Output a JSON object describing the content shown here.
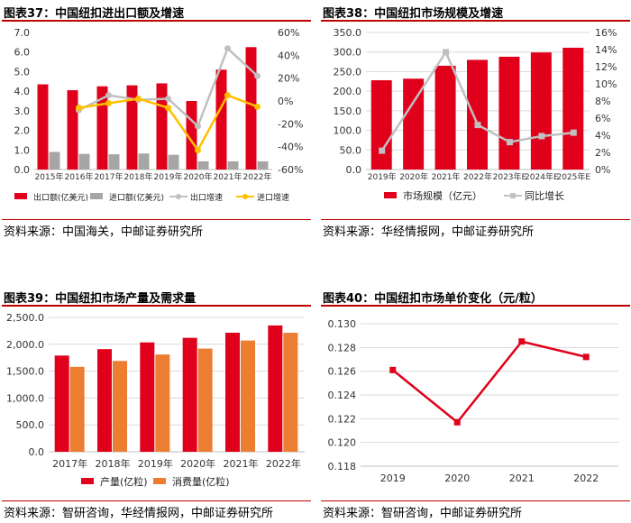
{
  "charts": [
    {
      "id": "c37",
      "title": "图表37：中国纽扣进出口额及增速",
      "source": "资料来源：中国海关，中邮证券研究所"
    },
    {
      "id": "c38",
      "title": "图表38：中国纽扣市场规模及增速",
      "source": "资料来源：华经情报网，中邮证券研究所"
    },
    {
      "id": "c39",
      "title": "图表39：中国纽扣市场产量及需求量",
      "source": "资料来源：智研咨询，华经情报网，中邮证券研究所"
    },
    {
      "id": "c40",
      "title": "图表40：中国纽扣市场单价变化（元/粒）",
      "source": "资料来源：智研咨询，中邮证券研究所"
    }
  ],
  "chart_data": [
    {
      "type": "bar",
      "title": "图表37：中国纽扣进出口额及增速",
      "categories": [
        "2015年",
        "2016年",
        "2017年",
        "2018年",
        "2019年",
        "2020年",
        "2021年",
        "2022年"
      ],
      "y_left": {
        "lim": [
          0,
          7.0
        ],
        "ticks": [
          "0.0",
          "1.0",
          "2.0",
          "3.0",
          "4.0",
          "5.0",
          "6.0",
          "7.0"
        ]
      },
      "y_right": {
        "lim": [
          -60,
          60
        ],
        "ticks": [
          "-60%",
          "-40%",
          "-20%",
          "0%",
          "20%",
          "40%",
          "60%"
        ]
      },
      "series": [
        {
          "name": "出口额(亿美元)",
          "kind": "bar",
          "axis": "left",
          "color": "#e0001b",
          "values": [
            4.35,
            4.05,
            4.25,
            4.3,
            4.4,
            3.5,
            5.1,
            6.25
          ]
        },
        {
          "name": "进口额(亿美元)",
          "kind": "bar",
          "axis": "left",
          "color": "#a6a6a6",
          "values": [
            0.9,
            0.8,
            0.78,
            0.82,
            0.75,
            0.42,
            0.42,
            0.42
          ]
        },
        {
          "name": "出口增速",
          "kind": "line",
          "axis": "right",
          "color": "#c0c0c0",
          "marker": "circle",
          "values": [
            null,
            -8,
            5,
            1,
            2,
            -22,
            46,
            22
          ]
        },
        {
          "name": "进口增速",
          "kind": "line",
          "axis": "right",
          "color": "#ffc000",
          "marker": "circle",
          "values": [
            null,
            -6,
            -2,
            2,
            -6,
            -43,
            5,
            -5
          ]
        }
      ],
      "legend": "bottom"
    },
    {
      "type": "bar",
      "title": "图表38：中国纽扣市场规模及增速",
      "categories": [
        "2019年",
        "2020年",
        "2021年",
        "2022年",
        "2023年E",
        "2024年E",
        "2025年E"
      ],
      "y_left": {
        "lim": [
          0,
          350
        ],
        "ticks": [
          "0.0",
          "50.0",
          "100.0",
          "150.0",
          "200.0",
          "250.0",
          "300.0",
          "350.0"
        ]
      },
      "y_right": {
        "lim": [
          0,
          16
        ],
        "ticks": [
          "0%",
          "2%",
          "4%",
          "6%",
          "8%",
          "10%",
          "12%",
          "14%",
          "16%"
        ]
      },
      "series": [
        {
          "name": "市场规模（亿元）",
          "kind": "bar",
          "axis": "left",
          "color": "#e0001b",
          "values": [
            228,
            232,
            265,
            280,
            288,
            299,
            311
          ]
        },
        {
          "name": "同比增长",
          "kind": "line",
          "axis": "right",
          "color": "#c0c0c0",
          "marker": "square",
          "values": [
            2.2,
            null,
            13.7,
            5.2,
            3.2,
            3.9,
            4.3
          ]
        }
      ],
      "legend": "bottom"
    },
    {
      "type": "bar",
      "title": "图表39：中国纽扣市场产量及需求量",
      "categories": [
        "2017年",
        "2018年",
        "2019年",
        "2020年",
        "2021年",
        "2022年"
      ],
      "y_left": {
        "lim": [
          0,
          2500
        ],
        "ticks": [
          "0.0",
          "500.0",
          "1,000.0",
          "1,500.0",
          "2,000.0",
          "2,500.0"
        ]
      },
      "series": [
        {
          "name": "产量(亿粒)",
          "kind": "bar",
          "axis": "left",
          "color": "#e0001b",
          "values": [
            1790,
            1910,
            2035,
            2120,
            2215,
            2350
          ]
        },
        {
          "name": "消费量(亿粒)",
          "kind": "bar",
          "axis": "left",
          "color": "#ed7d31",
          "values": [
            1580,
            1690,
            1810,
            1920,
            2070,
            2215
          ]
        }
      ],
      "legend": "bottom"
    },
    {
      "type": "line",
      "title": "图表40：中国纽扣市场单价变化（元/粒）",
      "categories": [
        "2019",
        "2020",
        "2021",
        "2022"
      ],
      "y_left": {
        "lim": [
          0.118,
          0.13
        ],
        "ticks": [
          "0.118",
          "0.120",
          "0.122",
          "0.124",
          "0.126",
          "0.128",
          "0.130"
        ]
      },
      "series": [
        {
          "name": "",
          "kind": "line",
          "axis": "left",
          "color": "#e0001b",
          "marker": "square",
          "values": [
            0.1261,
            0.1217,
            0.1285,
            0.1272
          ]
        }
      ],
      "legend": "none"
    }
  ]
}
